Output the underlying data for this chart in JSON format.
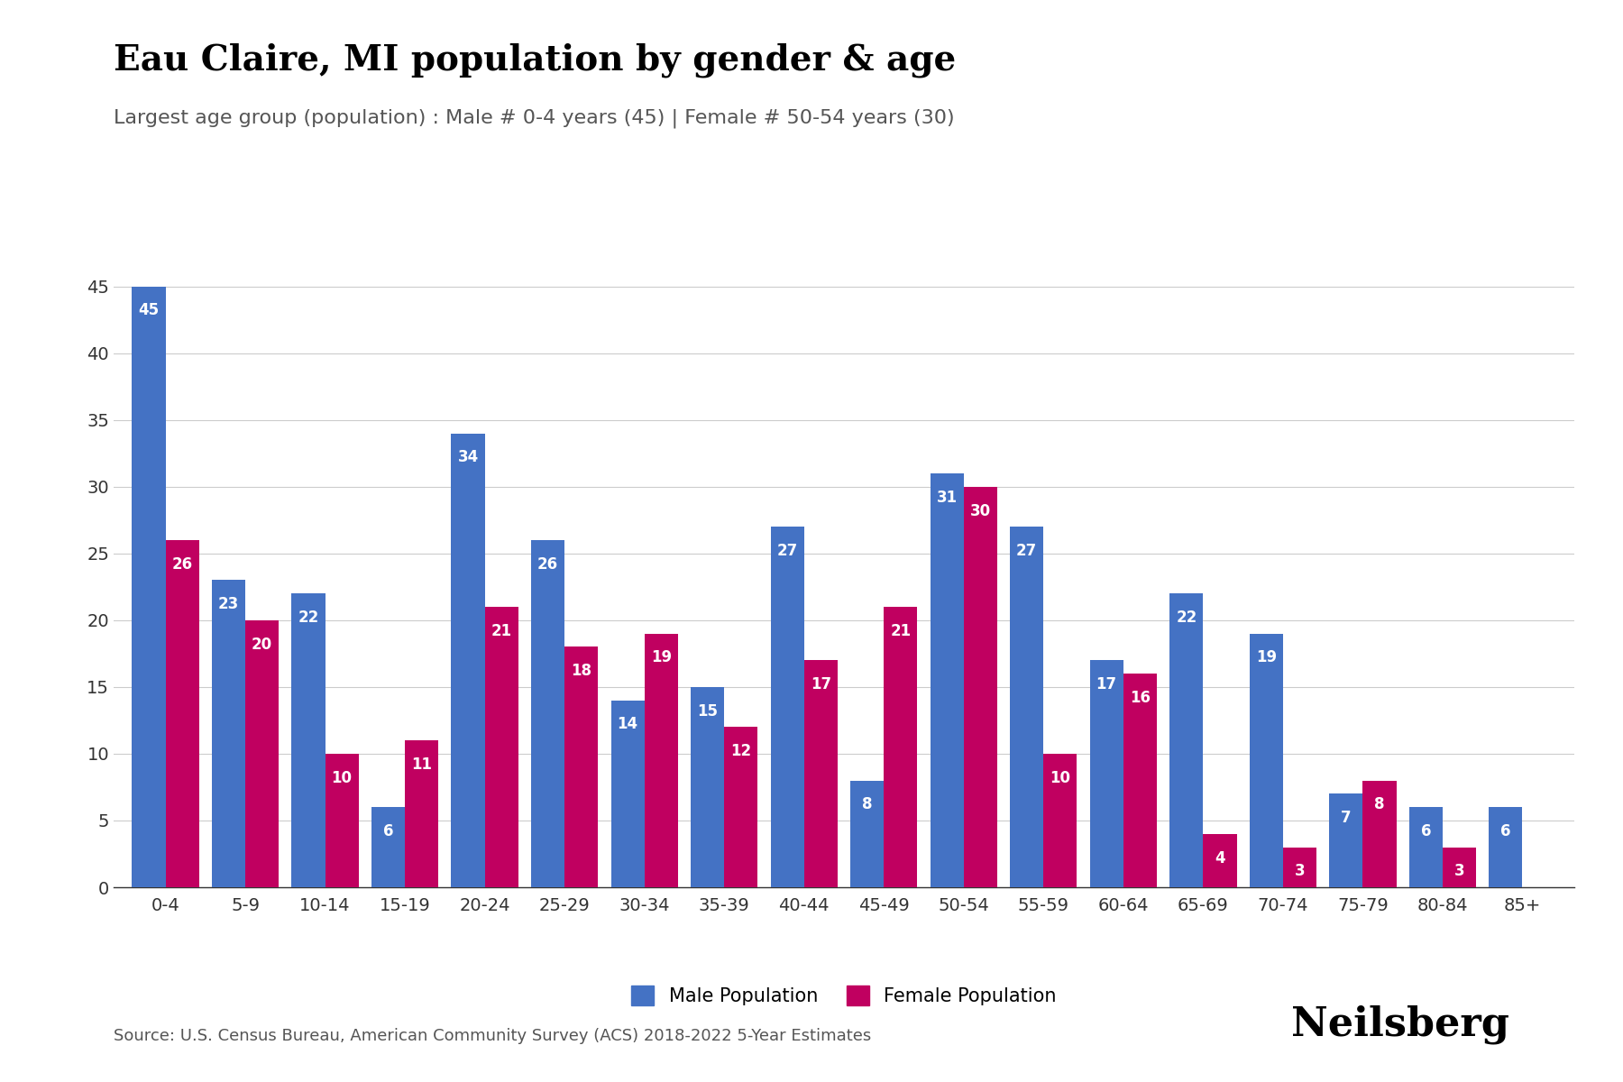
{
  "title": "Eau Claire, MI population by gender & age",
  "subtitle": "Largest age group (population) : Male # 0-4 years (45) | Female # 50-54 years (30)",
  "source": "Source: U.S. Census Bureau, American Community Survey (ACS) 2018-2022 5-Year Estimates",
  "age_groups": [
    "0-4",
    "5-9",
    "10-14",
    "15-19",
    "20-24",
    "25-29",
    "30-34",
    "35-39",
    "40-44",
    "45-49",
    "50-54",
    "55-59",
    "60-64",
    "65-69",
    "70-74",
    "75-79",
    "80-84",
    "85+"
  ],
  "male": [
    45,
    23,
    22,
    6,
    34,
    26,
    14,
    15,
    27,
    8,
    31,
    27,
    17,
    22,
    19,
    7,
    6,
    6
  ],
  "female": [
    26,
    20,
    10,
    11,
    21,
    18,
    19,
    12,
    17,
    21,
    30,
    10,
    16,
    4,
    3,
    8,
    3,
    0
  ],
  "male_color": "#4472C4",
  "female_color": "#C00060",
  "bar_width": 0.42,
  "ylim": [
    0,
    47
  ],
  "yticks": [
    0,
    5,
    10,
    15,
    20,
    25,
    30,
    35,
    40,
    45
  ],
  "title_fontsize": 28,
  "subtitle_fontsize": 16,
  "tick_fontsize": 14,
  "legend_fontsize": 15,
  "source_fontsize": 13,
  "value_fontsize": 12,
  "background_color": "#ffffff",
  "grid_color": "#cccccc",
  "brand": "Neilsberg",
  "brand_fontsize": 32
}
